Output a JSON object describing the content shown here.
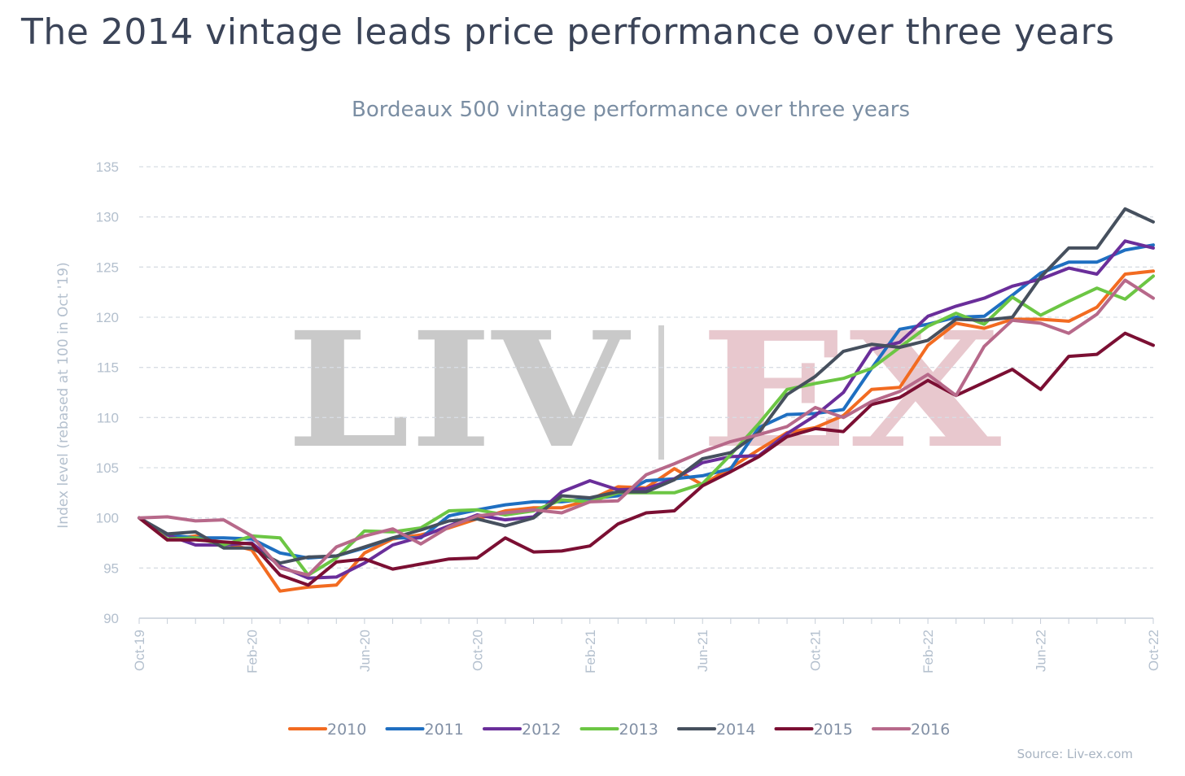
{
  "headline": "The 2014 vintage leads price performance over three years",
  "watermark": {
    "left": "LIV",
    "right": "EX"
  },
  "source": "Source: Liv-ex.com",
  "colors": {
    "2010": "#f26b21",
    "2011": "#1f6fc1",
    "2012": "#6a2e9a",
    "2013": "#6cc644",
    "2014": "#46505e",
    "2015": "#7b0f33",
    "2016": "#b7698a",
    "grid": "#d8dde4",
    "axis": "#c6ced8"
  },
  "chart_data": {
    "type": "line",
    "title": "Bordeaux 500 vintage performance over three years",
    "ylabel": "Index level (rebased at 100 in Oct '19)",
    "xlabel": "",
    "ylim": [
      90,
      135
    ],
    "yticks": [
      90,
      95,
      100,
      105,
      110,
      115,
      120,
      125,
      130,
      135
    ],
    "grid": true,
    "legend": "bottom",
    "x": [
      "Oct-19",
      "Nov-19",
      "Dec-19",
      "Jan-20",
      "Feb-20",
      "Mar-20",
      "Apr-20",
      "May-20",
      "Jun-20",
      "Jul-20",
      "Aug-20",
      "Sep-20",
      "Oct-20",
      "Nov-20",
      "Dec-20",
      "Jan-21",
      "Feb-21",
      "Mar-21",
      "Apr-21",
      "May-21",
      "Jun-21",
      "Jul-21",
      "Aug-21",
      "Sep-21",
      "Oct-21",
      "Nov-21",
      "Dec-21",
      "Jan-22",
      "Feb-22",
      "Mar-22",
      "Apr-22",
      "May-22",
      "Jun-22",
      "Jul-22",
      "Aug-22",
      "Sep-22",
      "Oct-22"
    ],
    "xtick_labels": [
      "Oct-19",
      "Feb-20",
      "Jun-20",
      "Oct-20",
      "Feb-21",
      "Jun-21",
      "Oct-21",
      "Feb-22",
      "Jun-22",
      "Oct-22"
    ],
    "xtick_indices": [
      0,
      4,
      8,
      12,
      16,
      20,
      24,
      28,
      32,
      36
    ],
    "series": [
      {
        "name": "2010",
        "values": [
          100,
          97.8,
          98.2,
          97.5,
          96.8,
          92.7,
          93.1,
          93.3,
          96.5,
          97.9,
          98.3,
          99.0,
          99.9,
          100.7,
          101.0,
          101.0,
          101.8,
          103.1,
          103.0,
          104.9,
          103.3,
          105.0,
          106.8,
          108.5,
          109.0,
          110.2,
          112.8,
          113.0,
          117.2,
          119.4,
          118.9,
          119.8,
          119.8,
          119.6,
          121.0,
          124.3,
          124.6
        ]
      },
      {
        "name": "2011",
        "values": [
          100,
          98.3,
          98.0,
          98.0,
          97.9,
          96.5,
          96.0,
          96.2,
          97.0,
          98.0,
          98.0,
          100.2,
          100.8,
          101.3,
          101.6,
          101.6,
          101.9,
          102.2,
          103.7,
          103.9,
          104.2,
          104.9,
          109.0,
          110.3,
          110.4,
          110.8,
          114.9,
          118.8,
          119.3,
          120.0,
          120.1,
          122.2,
          124.4,
          125.5,
          125.5,
          126.7,
          127.2
        ]
      },
      {
        "name": "2012",
        "values": [
          100,
          98.3,
          97.3,
          97.3,
          97.5,
          95.2,
          94.0,
          94.1,
          95.5,
          97.3,
          98.1,
          99.2,
          100.3,
          99.8,
          100.1,
          102.6,
          103.7,
          102.8,
          102.9,
          103.9,
          105.5,
          106.1,
          106.2,
          108.4,
          110.2,
          112.5,
          116.8,
          117.5,
          120.1,
          121.1,
          121.9,
          123.1,
          123.8,
          124.9,
          124.3,
          127.6,
          126.9
        ]
      },
      {
        "name": "2013",
        "values": [
          100,
          97.9,
          98.0,
          97.3,
          98.2,
          98.0,
          94.3,
          96.0,
          98.7,
          98.6,
          99.0,
          100.7,
          100.8,
          100.3,
          100.7,
          101.8,
          101.6,
          102.5,
          102.5,
          102.5,
          103.4,
          106.3,
          109.4,
          112.8,
          113.4,
          113.9,
          114.9,
          117.0,
          119.1,
          120.4,
          119.3,
          122.0,
          120.2,
          121.6,
          122.9,
          121.8,
          124.1
        ]
      },
      {
        "name": "2014",
        "values": [
          100,
          98.4,
          98.6,
          97.0,
          97.0,
          95.5,
          96.1,
          96.2,
          97.1,
          98.0,
          98.8,
          99.7,
          99.9,
          99.2,
          100.0,
          102.2,
          102.0,
          102.6,
          102.6,
          103.8,
          105.9,
          106.5,
          108.5,
          112.3,
          114.1,
          116.6,
          117.3,
          117.0,
          117.7,
          119.8,
          119.7,
          120.0,
          124.0,
          126.9,
          126.9,
          130.8,
          129.5
        ]
      },
      {
        "name": "2015",
        "values": [
          100,
          97.8,
          97.8,
          97.6,
          97.4,
          94.3,
          93.3,
          95.6,
          95.9,
          94.9,
          95.4,
          95.9,
          96.0,
          98.0,
          96.6,
          96.7,
          97.2,
          99.4,
          100.5,
          100.7,
          103.2,
          104.6,
          106.1,
          108.1,
          108.9,
          108.6,
          111.3,
          112.0,
          113.7,
          112.2,
          113.5,
          114.8,
          112.8,
          116.1,
          116.3,
          118.4,
          117.2
        ]
      },
      {
        "name": "2016",
        "values": [
          100,
          100.1,
          99.7,
          99.8,
          98.2,
          95.0,
          94.3,
          97.1,
          98.2,
          98.9,
          97.4,
          99.1,
          100.2,
          100.5,
          100.8,
          100.5,
          101.6,
          101.7,
          104.3,
          105.4,
          106.6,
          107.6,
          108.3,
          109.1,
          111.0,
          110.0,
          111.6,
          112.6,
          114.3,
          112.2,
          117.1,
          119.7,
          119.4,
          118.4,
          120.3,
          123.7,
          121.9
        ]
      }
    ]
  }
}
